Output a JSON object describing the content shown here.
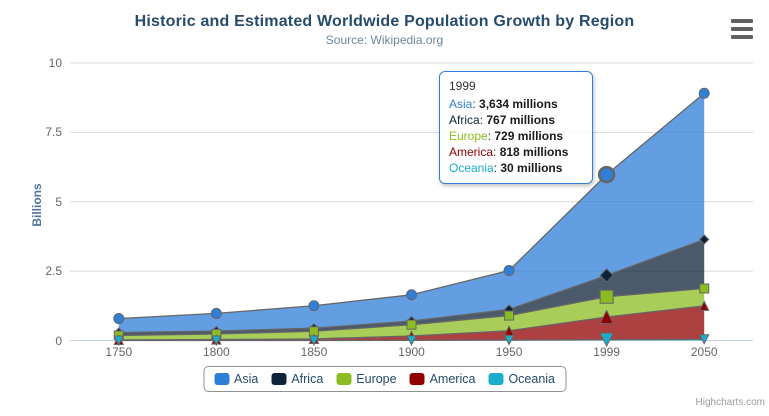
{
  "header": {
    "title": "Historic and Estimated Worldwide Population Growth by Region",
    "subtitle": "Source: Wikipedia.org"
  },
  "icons": {
    "export_menu": "hamburger-icon"
  },
  "colors": {
    "title_text": "#274b6d",
    "subtitle_text": "#6d869f",
    "axis_label": "#666666",
    "axis_line": "#c0d0e0",
    "gridline": "#d8d8d8",
    "series_outline": "#666666",
    "legend_text": "#274b6d",
    "legend_border": "#909090"
  },
  "chart_data": {
    "type": "area",
    "stacking": "normal",
    "title": "Historic and Estimated Worldwide Population Growth by Region",
    "subtitle": "Source: Wikipedia.org",
    "categories": [
      "1750",
      "1800",
      "1850",
      "1900",
      "1950",
      "1999",
      "2050"
    ],
    "series": [
      {
        "name": "Asia",
        "color": "#2f7ed8",
        "marker": "circle",
        "values": [
          502,
          635,
          809,
          947,
          1402,
          3634,
          5268
        ]
      },
      {
        "name": "Africa",
        "color": "#0d233a",
        "marker": "diamond",
        "values": [
          106,
          107,
          111,
          133,
          221,
          767,
          1766
        ]
      },
      {
        "name": "Europe",
        "color": "#8bbc21",
        "marker": "square",
        "values": [
          163,
          203,
          276,
          408,
          547,
          729,
          628
        ]
      },
      {
        "name": "America",
        "color": "#910000",
        "marker": "triangle",
        "values": [
          18,
          31,
          54,
          156,
          339,
          818,
          1201
        ]
      },
      {
        "name": "Oceania",
        "color": "#1aadce",
        "marker": "triangle-down",
        "values": [
          2,
          2,
          2,
          6,
          13,
          30,
          46
        ]
      }
    ],
    "values_unit": "millions",
    "xlabel": "",
    "ylabel": "Billions",
    "ylim": [
      0,
      10
    ],
    "yticks": [
      0,
      2.5,
      5,
      7.5,
      10
    ],
    "ytick_labels": [
      "0",
      "2.5",
      "5",
      "7.5",
      "10"
    ],
    "grid": "horizontal",
    "legend_position": "bottom",
    "hover_index": 5,
    "hover_category": "1999",
    "fill_opacity": 0.75
  },
  "tooltip": {
    "header": "1999",
    "rows": [
      {
        "name": "Asia",
        "value": "3,634 millions"
      },
      {
        "name": "Africa",
        "value": "767 millions"
      },
      {
        "name": "Europe",
        "value": "729 millions"
      },
      {
        "name": "America",
        "value": "818 millions"
      },
      {
        "name": "Oceania",
        "value": "30 millions"
      }
    ]
  },
  "legend": {
    "items": [
      "Asia",
      "Africa",
      "Europe",
      "America",
      "Oceania"
    ]
  },
  "credits": "Highcharts.com"
}
